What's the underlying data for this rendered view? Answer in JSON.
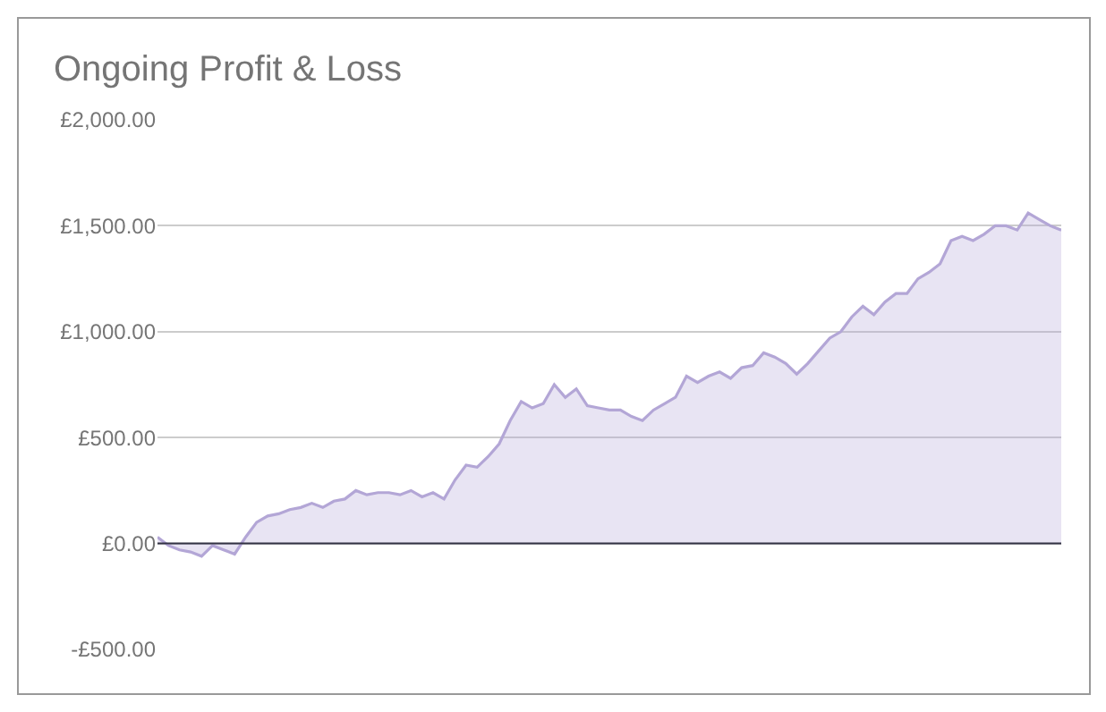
{
  "chart_data": {
    "type": "area",
    "title": "Ongoing Profit & Loss",
    "categories": [
      null,
      null,
      null,
      null,
      null,
      null,
      null,
      null,
      null,
      null,
      null,
      null,
      null,
      null,
      null,
      null,
      null,
      null,
      null,
      null,
      null,
      null,
      null,
      null,
      null,
      null,
      null,
      null,
      null,
      null,
      null,
      null,
      null,
      null,
      null,
      null,
      null,
      null,
      null,
      null,
      null,
      null,
      null,
      null,
      null,
      null,
      null,
      null,
      null,
      null,
      null,
      null,
      null,
      null,
      null,
      null,
      null,
      null,
      null,
      null,
      null,
      null,
      null,
      null,
      null,
      null,
      null,
      null,
      null,
      null,
      null,
      null,
      null,
      null,
      null,
      null,
      null,
      null,
      null,
      null,
      null,
      null,
      null
    ],
    "series": [
      {
        "color": "#b3a6d6",
        "values": [
          30,
          -10,
          -30,
          -40,
          -60,
          -10,
          -30,
          -50,
          30,
          100,
          130,
          140,
          160,
          170,
          190,
          170,
          200,
          210,
          250,
          230,
          240,
          240,
          230,
          250,
          220,
          240,
          210,
          300,
          370,
          360,
          410,
          470,
          580,
          670,
          640,
          660,
          750,
          690,
          730,
          650,
          640,
          630,
          630,
          600,
          580,
          630,
          660,
          690,
          790,
          760,
          790,
          810,
          780,
          830,
          840,
          900,
          880,
          850,
          800,
          850,
          910,
          970,
          1000,
          1070,
          1120,
          1080,
          1140,
          1180,
          1180,
          1250,
          1280,
          1320,
          1430,
          1450,
          1430,
          1460,
          1500,
          1500,
          1480,
          1560,
          1530,
          1500,
          1480
        ]
      }
    ],
    "ylim": [
      -500,
      2000
    ],
    "yticks": [
      {
        "value": -500,
        "label": "-£500.00"
      },
      {
        "value": 0,
        "label": "£0.00"
      },
      {
        "value": 500,
        "label": "£500.00"
      },
      {
        "value": 1000,
        "label": "£1,000.00"
      },
      {
        "value": 1500,
        "label": "£1,500.00"
      },
      {
        "value": 2000,
        "label": "£2,000.00"
      }
    ],
    "grid": "y",
    "tick_labels": "y",
    "ref_lines": [
      {
        "axis": "y",
        "value": 0,
        "color": "#333344"
      }
    ]
  }
}
